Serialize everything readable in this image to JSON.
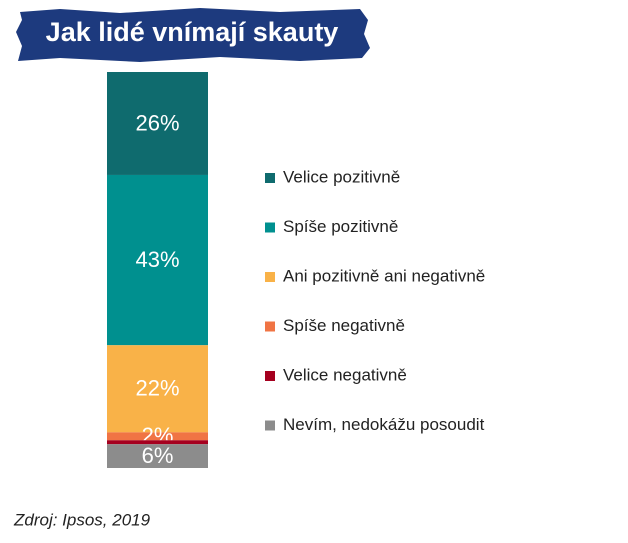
{
  "chart_data": {
    "type": "stacked-bar",
    "title": "Jak lidé vnímají skauty",
    "source": "Zdroj: Ipsos, 2019",
    "series": [
      {
        "name": "Velice pozitivně",
        "color": "#0f6b6e",
        "values": [
          26
        ],
        "value_labels": [
          "26%"
        ]
      },
      {
        "name": "Spíše pozitivně",
        "color": "#00908f",
        "values": [
          43
        ],
        "value_labels": [
          "43%"
        ]
      },
      {
        "name": "Ani pozitivně ani negativně",
        "color": "#f9b248",
        "values": [
          22
        ],
        "value_labels": [
          "22%"
        ]
      },
      {
        "name": "Spíše negativně",
        "color": "#f07444",
        "values": [
          2
        ],
        "value_labels": [
          "2%"
        ]
      },
      {
        "name": "Velice negativně",
        "color": "#a5001f",
        "values": [
          1
        ]
      },
      {
        "name": "Nevím, nedokážu posoudit",
        "color": "#8c8c8c",
        "values": [
          6
        ],
        "value_labels": [
          "6%"
        ]
      }
    ]
  }
}
